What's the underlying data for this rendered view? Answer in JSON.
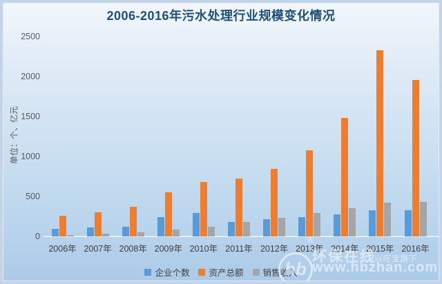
{
  "title": "2006-2016年污水处理行业规模变化情况",
  "y_axis_title": "单位：个、亿元",
  "chart_data": {
    "type": "bar",
    "title": "2006-2016年污水处理行业规模变化情况",
    "categories": [
      "2006年",
      "2007年",
      "2008年",
      "2009年",
      "2010年",
      "2011年",
      "2012年",
      "2013年",
      "2014年",
      "2015年",
      "2016年"
    ],
    "series": [
      {
        "key": "enterprises",
        "name": "企业个数",
        "color": "#5b9bd5",
        "values": [
          95,
          110,
          125,
          240,
          295,
          180,
          215,
          245,
          275,
          330,
          330
        ]
      },
      {
        "key": "assets",
        "name": "资产总额",
        "color": "#ed7d31",
        "values": [
          255,
          300,
          370,
          555,
          680,
          725,
          845,
          1080,
          1480,
          2330,
          1960
        ]
      },
      {
        "key": "revenue",
        "name": "销售收入",
        "color": "#a5a5a5",
        "values": [
          20,
          35,
          50,
          90,
          120,
          185,
          230,
          290,
          350,
          425,
          435
        ]
      }
    ],
    "xlabel": "",
    "ylabel": "单位：个、亿元",
    "ylim": [
      0,
      2500
    ],
    "y_ticks": [
      0,
      500,
      1000,
      1500,
      2000,
      2500
    ],
    "grid": false,
    "legend_position": "bottom"
  },
  "watermark": {
    "logo_text": "hb",
    "reg": "®",
    "brand": "环保在线",
    "sub": "兴旺宝旗下",
    "url": "www.hbzhan.com"
  }
}
